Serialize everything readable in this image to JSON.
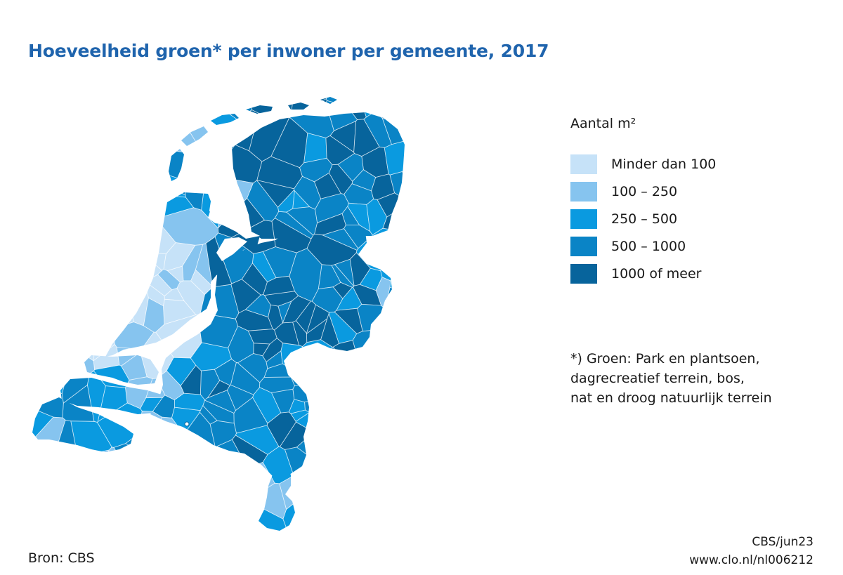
{
  "title": "Hoeveelheid groen* per inwoner per gemeente, 2017",
  "legend": {
    "title": "Aantal m²",
    "classes": [
      {
        "label": "Minder dan 100",
        "color": "#c6e2f8"
      },
      {
        "label": "100 – 250",
        "color": "#86c4ef"
      },
      {
        "label": "250 – 500",
        "color": "#0a9ae0"
      },
      {
        "label": "500 – 1000",
        "color": "#0a84c6"
      },
      {
        "label": "1000 of meer",
        "color": "#07649c"
      }
    ]
  },
  "footnote": {
    "line1": "*) Groen: Park en plantsoen,",
    "line2": "dagrecreatief terrein, bos,",
    "line3": "nat en droog natuurlijk terrein"
  },
  "source": "Bron: CBS",
  "credit": {
    "line1": "CBS/jun23",
    "line2": "www.clo.nl/nl006212"
  }
}
